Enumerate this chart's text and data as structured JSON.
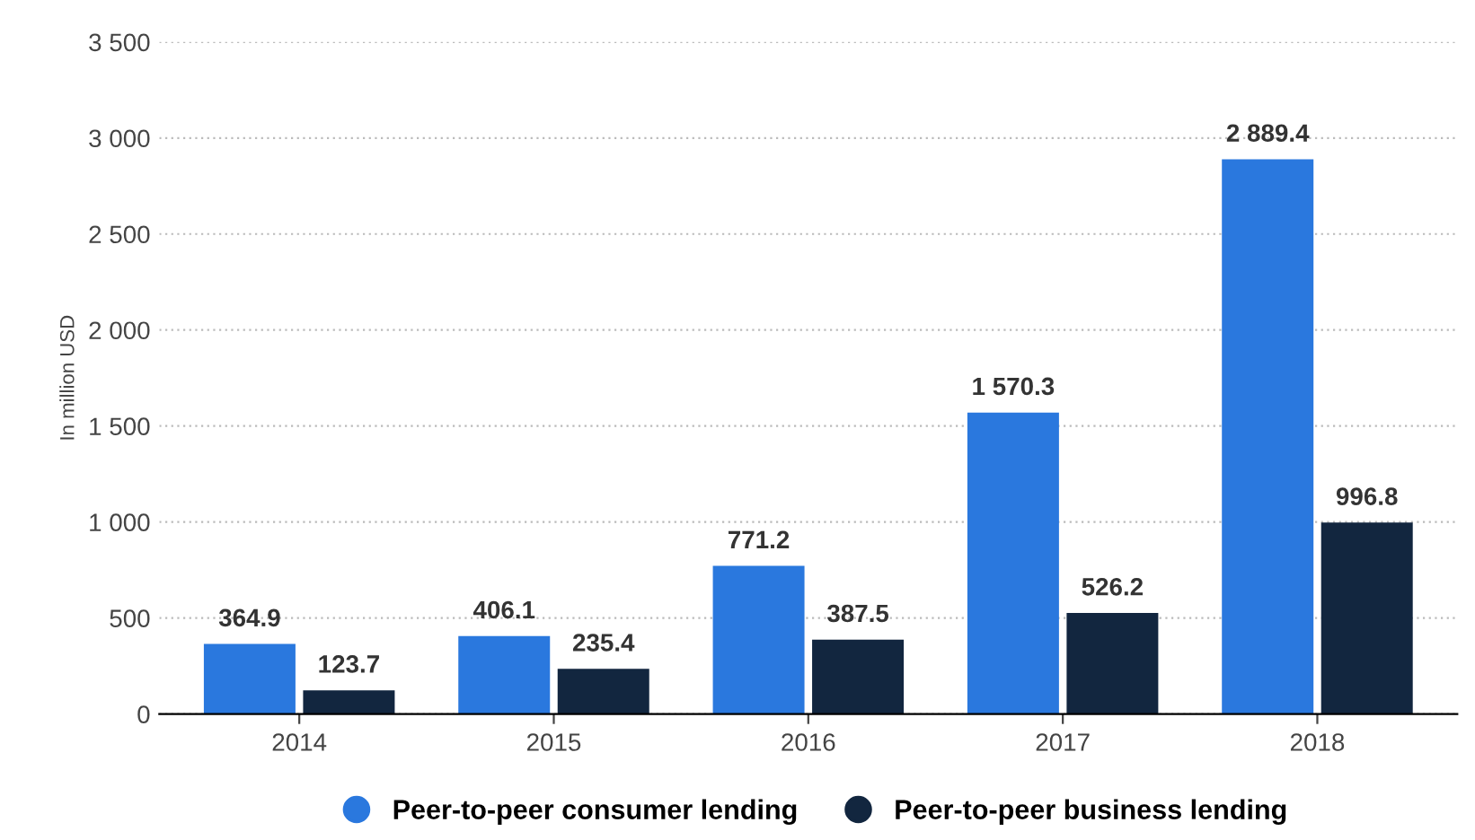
{
  "chart_data": {
    "type": "bar",
    "ylabel": "In million USD",
    "categories": [
      "2014",
      "2015",
      "2016",
      "2017",
      "2018"
    ],
    "series": [
      {
        "name": "Peer-to-peer consumer lending",
        "color": "#2a78de",
        "values": [
          364.9,
          406.1,
          771.2,
          1570.3,
          2889.4
        ],
        "value_labels": [
          "364.9",
          "406.1",
          "771.2",
          "1 570.3",
          "2 889.4"
        ]
      },
      {
        "name": "Peer-to-peer business lending",
        "color": "#12263f",
        "values": [
          123.7,
          235.4,
          387.5,
          526.2,
          996.8
        ],
        "value_labels": [
          "123.7",
          "235.4",
          "387.5",
          "526.2",
          "996.8"
        ]
      }
    ],
    "ylim": [
      0,
      3500
    ],
    "yticks": [
      0,
      500,
      {
        "value": 1000,
        "label": "1 000"
      },
      {
        "value": 1500,
        "label": "1 500"
      },
      {
        "value": 2000,
        "label": "2 000"
      },
      {
        "value": 2500,
        "label": "2 500"
      },
      {
        "value": 3000,
        "label": "3 000"
      },
      {
        "value": 3500,
        "label": "3 500"
      }
    ],
    "grid": "y",
    "legend": "bottom"
  }
}
